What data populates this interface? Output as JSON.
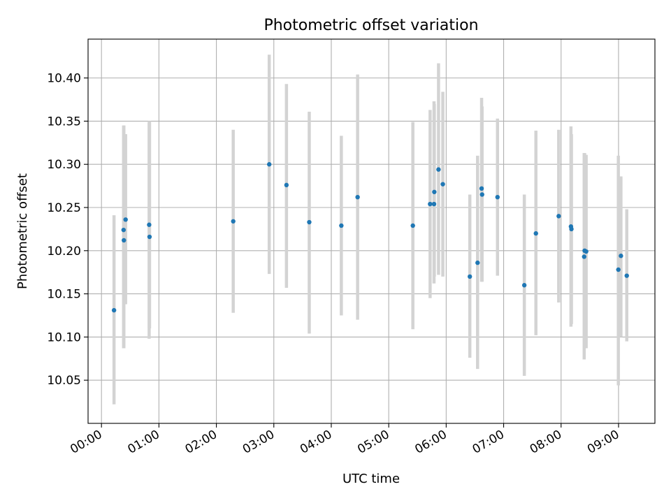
{
  "chart_data": {
    "type": "scatter",
    "title": "Photometric offset variation",
    "xlabel": "UTC time",
    "ylabel": "Photometric offset",
    "xlim_minutes": [
      -14,
      578
    ],
    "ylim": [
      10.0,
      10.445
    ],
    "grid": true,
    "colors": {
      "points": "#1f77b4",
      "errorbars": "#d3d3d3",
      "grid": "#b0b0b0"
    },
    "x_ticks": [
      {
        "minute": 0,
        "label": "00:00"
      },
      {
        "minute": 60,
        "label": "01:00"
      },
      {
        "minute": 120,
        "label": "02:00"
      },
      {
        "minute": 180,
        "label": "03:00"
      },
      {
        "minute": 240,
        "label": "04:00"
      },
      {
        "minute": 300,
        "label": "05:00"
      },
      {
        "minute": 360,
        "label": "06:00"
      },
      {
        "minute": 420,
        "label": "07:00"
      },
      {
        "minute": 480,
        "label": "08:00"
      },
      {
        "minute": 540,
        "label": "09:00"
      }
    ],
    "y_ticks": [
      {
        "value": 10.05,
        "label": "10.05"
      },
      {
        "value": 10.1,
        "label": "10.10"
      },
      {
        "value": 10.15,
        "label": "10.15"
      },
      {
        "value": 10.2,
        "label": "10.20"
      },
      {
        "value": 10.25,
        "label": "10.25"
      },
      {
        "value": 10.3,
        "label": "10.30"
      },
      {
        "value": 10.35,
        "label": "10.35"
      },
      {
        "value": 10.4,
        "label": "10.40"
      }
    ],
    "points": [
      {
        "time": "00:13",
        "minute": 13.1,
        "y": 10.131,
        "lo": 10.022,
        "hi": 10.241
      },
      {
        "time": "00:23",
        "minute": 23.1,
        "y": 10.224,
        "lo": 10.087,
        "hi": 10.345
      },
      {
        "time": "00:23",
        "minute": 23.4,
        "y": 10.212,
        "lo": 10.087,
        "hi": 10.345
      },
      {
        "time": "00:25",
        "minute": 25.2,
        "y": 10.236,
        "lo": 10.138,
        "hi": 10.335
      },
      {
        "time": "00:50",
        "minute": 49.8,
        "y": 10.23,
        "lo": 10.098,
        "hi": 10.349
      },
      {
        "time": "00:50",
        "minute": 50.2,
        "y": 10.216,
        "lo": 10.11,
        "hi": 10.35
      },
      {
        "time": "02:18",
        "minute": 137.6,
        "y": 10.234,
        "lo": 10.128,
        "hi": 10.34
      },
      {
        "time": "02:55",
        "minute": 175.2,
        "y": 10.3,
        "lo": 10.173,
        "hi": 10.427
      },
      {
        "time": "03:13",
        "minute": 193.2,
        "y": 10.276,
        "lo": 10.157,
        "hi": 10.393
      },
      {
        "time": "03:37",
        "minute": 217.0,
        "y": 10.233,
        "lo": 10.104,
        "hi": 10.361
      },
      {
        "time": "04:10",
        "minute": 250.5,
        "y": 10.229,
        "lo": 10.125,
        "hi": 10.333
      },
      {
        "time": "04:27",
        "minute": 267.5,
        "y": 10.262,
        "lo": 10.12,
        "hi": 10.404
      },
      {
        "time": "05:25",
        "minute": 325.2,
        "y": 10.229,
        "lo": 10.109,
        "hi": 10.349
      },
      {
        "time": "05:43",
        "minute": 343.2,
        "y": 10.254,
        "lo": 10.145,
        "hi": 10.363
      },
      {
        "time": "05:47",
        "minute": 347.3,
        "y": 10.254,
        "lo": 10.162,
        "hi": 10.373
      },
      {
        "time": "05:48",
        "minute": 347.6,
        "y": 10.268,
        "lo": 10.17,
        "hi": 10.37
      },
      {
        "time": "05:52",
        "minute": 352.0,
        "y": 10.294,
        "lo": 10.172,
        "hi": 10.417
      },
      {
        "time": "05:57",
        "minute": 356.5,
        "y": 10.277,
        "lo": 10.17,
        "hi": 10.384
      },
      {
        "time": "06:25",
        "minute": 384.7,
        "y": 10.17,
        "lo": 10.076,
        "hi": 10.265
      },
      {
        "time": "06:33",
        "minute": 392.8,
        "y": 10.186,
        "lo": 10.063,
        "hi": 10.31
      },
      {
        "time": "06:37",
        "minute": 397.0,
        "y": 10.272,
        "lo": 10.164,
        "hi": 10.377
      },
      {
        "time": "06:38",
        "minute": 397.5,
        "y": 10.265,
        "lo": 10.164,
        "hi": 10.367
      },
      {
        "time": "06:54",
        "minute": 413.6,
        "y": 10.262,
        "lo": 10.171,
        "hi": 10.353
      },
      {
        "time": "07:22",
        "minute": 441.6,
        "y": 10.16,
        "lo": 10.055,
        "hi": 10.265
      },
      {
        "time": "07:34",
        "minute": 453.7,
        "y": 10.22,
        "lo": 10.102,
        "hi": 10.339
      },
      {
        "time": "07:58",
        "minute": 477.5,
        "y": 10.24,
        "lo": 10.14,
        "hi": 10.34
      },
      {
        "time": "08:10",
        "minute": 490.3,
        "y": 10.228,
        "lo": 10.112,
        "hi": 10.344
      },
      {
        "time": "08:11",
        "minute": 490.8,
        "y": 10.225,
        "lo": 10.115,
        "hi": 10.335
      },
      {
        "time": "08:24",
        "minute": 504.1,
        "y": 10.193,
        "lo": 10.074,
        "hi": 10.313
      },
      {
        "time": "08:25",
        "minute": 504.6,
        "y": 10.2,
        "lo": 10.087,
        "hi": 10.313
      },
      {
        "time": "08:26",
        "minute": 506.2,
        "y": 10.199,
        "lo": 10.087,
        "hi": 10.311
      },
      {
        "time": "09:00",
        "minute": 539.8,
        "y": 10.178,
        "lo": 10.044,
        "hi": 10.31
      },
      {
        "time": "09:03",
        "minute": 542.5,
        "y": 10.194,
        "lo": 10.1,
        "hi": 10.286
      },
      {
        "time": "09:09",
        "minute": 548.6,
        "y": 10.171,
        "lo": 10.095,
        "hi": 10.248
      }
    ]
  }
}
